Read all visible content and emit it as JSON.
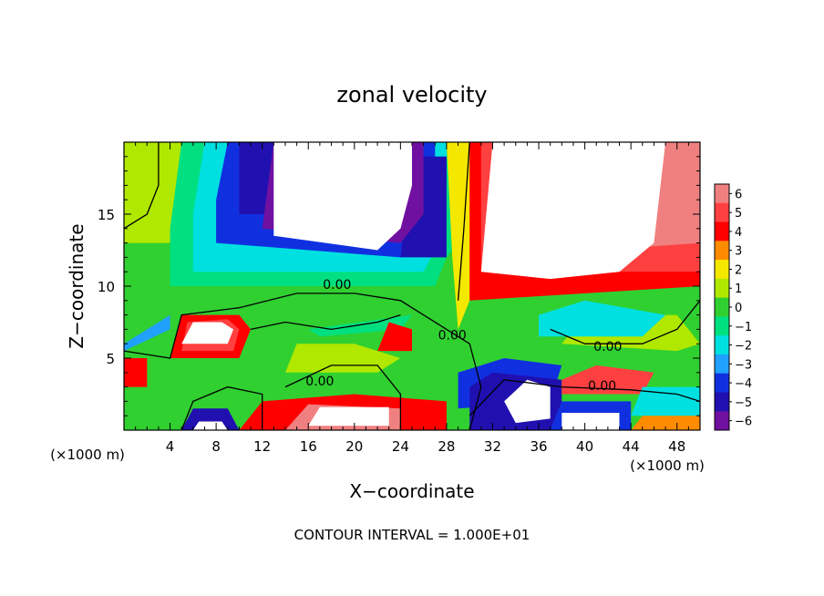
{
  "chart_data": {
    "type": "heatmap",
    "title": "zonal velocity",
    "xlabel": "X−coordinate",
    "ylabel": "Z−coordinate",
    "x_unit_left": "(×1000 m)",
    "x_unit_right": "(×1000 m)",
    "footer": "CONTOUR INTERVAL = 1.000E+01",
    "xlim": [
      0,
      50
    ],
    "ylim": [
      0,
      20
    ],
    "x_ticks": [
      4,
      8,
      12,
      16,
      20,
      24,
      28,
      32,
      36,
      40,
      44,
      48
    ],
    "x_tick_labels": [
      "4",
      "8",
      "12",
      "16",
      "20",
      "24",
      "28",
      "32",
      "36",
      "40",
      "44",
      "48"
    ],
    "y_ticks": [
      5,
      10,
      15
    ],
    "y_tick_labels": [
      "5",
      "10",
      "15"
    ],
    "colorbar": {
      "levels": [
        6,
        5,
        4,
        3,
        2,
        1,
        0,
        -1,
        -2,
        -3,
        -4,
        -5,
        -6
      ],
      "labels": [
        "6",
        "5",
        "4",
        "3",
        "2",
        "1",
        "0",
        "−1",
        "−2",
        "−3",
        "−4",
        "−5",
        "−6"
      ],
      "colors": [
        "#f08080",
        "#ff4040",
        "#ff0000",
        "#ff8c00",
        "#f5e800",
        "#b0e800",
        "#30d030",
        "#00e080",
        "#00e0e0",
        "#20a0ff",
        "#1030e0",
        "#2010b0",
        "#7010a0"
      ]
    },
    "contour_labels": [
      {
        "text": "0.00",
        "x": 18.5,
        "y": 9.8
      },
      {
        "text": "0.00",
        "x": 28.5,
        "y": 6.3
      },
      {
        "text": "0.00",
        "x": 17.0,
        "y": 3.1
      },
      {
        "text": "0.00",
        "x": 42.0,
        "y": 5.5
      },
      {
        "text": "0.00",
        "x": 41.5,
        "y": 2.8
      }
    ],
    "regions": [
      {
        "value": 0,
        "points": [
          [
            0,
            0
          ],
          [
            50,
            0
          ],
          [
            50,
            20
          ],
          [
            0,
            20
          ]
        ]
      },
      {
        "value": 1,
        "points": [
          [
            0,
            13
          ],
          [
            4,
            13
          ],
          [
            5,
            20
          ],
          [
            0,
            20
          ]
        ]
      },
      {
        "value": -1,
        "points": [
          [
            4,
            10
          ],
          [
            27,
            10
          ],
          [
            28,
            12
          ],
          [
            30,
            14
          ],
          [
            30,
            20
          ],
          [
            5,
            20
          ],
          [
            4,
            14
          ]
        ]
      },
      {
        "value": -2,
        "points": [
          [
            6,
            11
          ],
          [
            26,
            11
          ],
          [
            28,
            14
          ],
          [
            28,
            20
          ],
          [
            7,
            20
          ],
          [
            6,
            15
          ]
        ]
      },
      {
        "value": -4,
        "points": [
          [
            8,
            13
          ],
          [
            24,
            12
          ],
          [
            27,
            14
          ],
          [
            27,
            20
          ],
          [
            9,
            20
          ],
          [
            8,
            16
          ]
        ]
      },
      {
        "value": -5,
        "points": [
          [
            10,
            15
          ],
          [
            13,
            15
          ],
          [
            14,
            20
          ],
          [
            10,
            20
          ]
        ]
      },
      {
        "value": -5,
        "points": [
          [
            24,
            12
          ],
          [
            28,
            12
          ],
          [
            28,
            19
          ],
          [
            25,
            19
          ]
        ]
      },
      {
        "value": -6,
        "points": [
          [
            12,
            14
          ],
          [
            24,
            13
          ],
          [
            26,
            15
          ],
          [
            26,
            20
          ],
          [
            13,
            20
          ]
        ]
      },
      {
        "value": -3,
        "points": [
          [
            0,
            6
          ],
          [
            4,
            8
          ],
          [
            4,
            7
          ],
          [
            0,
            5.5
          ]
        ]
      },
      {
        "value": -1,
        "points": [
          [
            16,
            7
          ],
          [
            25,
            8
          ],
          [
            24,
            7
          ],
          [
            17,
            6.5
          ]
        ]
      },
      {
        "value": 1,
        "points": [
          [
            14,
            4
          ],
          [
            22,
            4
          ],
          [
            24,
            5
          ],
          [
            20,
            6
          ],
          [
            15,
            6
          ]
        ]
      },
      {
        "value": 1,
        "points": [
          [
            38,
            6
          ],
          [
            48,
            5.5
          ],
          [
            50,
            6
          ],
          [
            48,
            8
          ],
          [
            40,
            8
          ]
        ]
      },
      {
        "value": -2,
        "points": [
          [
            36,
            6.5
          ],
          [
            45,
            6.5
          ],
          [
            47,
            8
          ],
          [
            40,
            9
          ],
          [
            36,
            8
          ]
        ]
      },
      {
        "value": 4,
        "points": [
          [
            30,
            9
          ],
          [
            50,
            10
          ],
          [
            50,
            20
          ],
          [
            29,
            20
          ],
          [
            29,
            14
          ]
        ]
      },
      {
        "value": 2,
        "points": [
          [
            29,
            7
          ],
          [
            30,
            9
          ],
          [
            30,
            20
          ],
          [
            28,
            20
          ],
          [
            28.5,
            12
          ]
        ]
      },
      {
        "value": 5,
        "points": [
          [
            31,
            11
          ],
          [
            50,
            11
          ],
          [
            50,
            20
          ],
          [
            31,
            20
          ]
        ]
      },
      {
        "value": 6,
        "points": [
          [
            32,
            12
          ],
          [
            50,
            13
          ],
          [
            50,
            20
          ],
          [
            32,
            20
          ]
        ]
      },
      {
        "value": 4,
        "points": [
          [
            4,
            5
          ],
          [
            10,
            5
          ],
          [
            11,
            7
          ],
          [
            10,
            8
          ],
          [
            5,
            8
          ]
        ]
      },
      {
        "value": 5,
        "points": [
          [
            5,
            5.5
          ],
          [
            9.5,
            5.5
          ],
          [
            10,
            7
          ],
          [
            9,
            7.7
          ],
          [
            5.5,
            7.5
          ]
        ]
      },
      {
        "value": 4,
        "points": [
          [
            22,
            5.5
          ],
          [
            25,
            5.5
          ],
          [
            25,
            7
          ],
          [
            23,
            7.5
          ]
        ]
      },
      {
        "value": 4,
        "points": [
          [
            0,
            3
          ],
          [
            2,
            3
          ],
          [
            2,
            5
          ],
          [
            0,
            5
          ]
        ]
      },
      {
        "value": 4,
        "points": [
          [
            10,
            0
          ],
          [
            28,
            0
          ],
          [
            28,
            2
          ],
          [
            20,
            2.5
          ],
          [
            12,
            2
          ]
        ]
      },
      {
        "value": 6,
        "points": [
          [
            14,
            0
          ],
          [
            24,
            0
          ],
          [
            24,
            1.5
          ],
          [
            16,
            1.8
          ]
        ]
      },
      {
        "value": -4,
        "points": [
          [
            29,
            1.5
          ],
          [
            37,
            2
          ],
          [
            38,
            4.5
          ],
          [
            33,
            5
          ],
          [
            29,
            4
          ]
        ]
      },
      {
        "value": -5,
        "points": [
          [
            30,
            0
          ],
          [
            38,
            0
          ],
          [
            38,
            3.5
          ],
          [
            32,
            4
          ],
          [
            30,
            3
          ]
        ]
      },
      {
        "value": 5,
        "points": [
          [
            38,
            2.5
          ],
          [
            45,
            2.5
          ],
          [
            46,
            4
          ],
          [
            41,
            4.5
          ],
          [
            38,
            3.5
          ]
        ]
      },
      {
        "value": -4,
        "points": [
          [
            37,
            0
          ],
          [
            44,
            0
          ],
          [
            44,
            2
          ],
          [
            38,
            2
          ]
        ]
      },
      {
        "value": -2,
        "points": [
          [
            44,
            1
          ],
          [
            50,
            1
          ],
          [
            50,
            3
          ],
          [
            45,
            3
          ]
        ]
      },
      {
        "value": 3,
        "points": [
          [
            44,
            0
          ],
          [
            50,
            0
          ],
          [
            50,
            1
          ],
          [
            45,
            1
          ]
        ]
      },
      {
        "value": -5,
        "points": [
          [
            5,
            0
          ],
          [
            10,
            0
          ],
          [
            9,
            1.5
          ],
          [
            6,
            1.5
          ]
        ]
      }
    ],
    "masked_regions": [
      {
        "points": [
          [
            13,
            13.5
          ],
          [
            22,
            12.5
          ],
          [
            24,
            14
          ],
          [
            25,
            17
          ],
          [
            25,
            20
          ],
          [
            13,
            20
          ]
        ]
      },
      {
        "points": [
          [
            31,
            11
          ],
          [
            37,
            10.5
          ],
          [
            43,
            11
          ],
          [
            46,
            13
          ],
          [
            47,
            20
          ],
          [
            32,
            20
          ]
        ]
      },
      {
        "points": [
          [
            5,
            6
          ],
          [
            9,
            6
          ],
          [
            9.5,
            7
          ],
          [
            8.5,
            7.5
          ],
          [
            6,
            7.5
          ]
        ]
      },
      {
        "points": [
          [
            34,
            0.5
          ],
          [
            37,
            0.8
          ],
          [
            37,
            3
          ],
          [
            35,
            3.5
          ],
          [
            33,
            2
          ]
        ]
      },
      {
        "points": [
          [
            38,
            0
          ],
          [
            43,
            0
          ],
          [
            43,
            1.2
          ],
          [
            38,
            1.2
          ]
        ]
      },
      {
        "points": [
          [
            16,
            0.3
          ],
          [
            23,
            0.3
          ],
          [
            23,
            1.6
          ],
          [
            17,
            1.6
          ]
        ]
      },
      {
        "points": [
          [
            6,
            0
          ],
          [
            9,
            0
          ],
          [
            8.5,
            0.6
          ],
          [
            6.5,
            0.6
          ]
        ]
      }
    ],
    "zero_contours": [
      {
        "points": [
          [
            0,
            14
          ],
          [
            2,
            15
          ],
          [
            3,
            17
          ],
          [
            3,
            20
          ]
        ]
      },
      {
        "points": [
          [
            0,
            5.5
          ],
          [
            4,
            5
          ],
          [
            5,
            8
          ],
          [
            10,
            8.5
          ],
          [
            15,
            9.5
          ],
          [
            20,
            9.5
          ],
          [
            24,
            9
          ],
          [
            26,
            8
          ],
          [
            28,
            7
          ],
          [
            30,
            6
          ],
          [
            31,
            3
          ],
          [
            30,
            0
          ]
        ]
      },
      {
        "points": [
          [
            14,
            3
          ],
          [
            18,
            4.5
          ],
          [
            22,
            4.5
          ],
          [
            24,
            2.5
          ],
          [
            24,
            0
          ]
        ]
      },
      {
        "points": [
          [
            11,
            7
          ],
          [
            14,
            7.5
          ],
          [
            18,
            7
          ],
          [
            22,
            7.5
          ],
          [
            24,
            8
          ]
        ]
      },
      {
        "points": [
          [
            37,
            7
          ],
          [
            40,
            6
          ],
          [
            45,
            6
          ],
          [
            48,
            7
          ],
          [
            50,
            9
          ]
        ]
      },
      {
        "points": [
          [
            30,
            1
          ],
          [
            33,
            3.5
          ],
          [
            38,
            3
          ],
          [
            44,
            2.8
          ],
          [
            48,
            2.5
          ],
          [
            50,
            2
          ]
        ]
      },
      {
        "points": [
          [
            29,
            9
          ],
          [
            29.5,
            14
          ],
          [
            30,
            20
          ]
        ]
      },
      {
        "points": [
          [
            5,
            0
          ],
          [
            6,
            2
          ],
          [
            9,
            3
          ],
          [
            12,
            2.5
          ],
          [
            12,
            0
          ]
        ]
      }
    ]
  }
}
